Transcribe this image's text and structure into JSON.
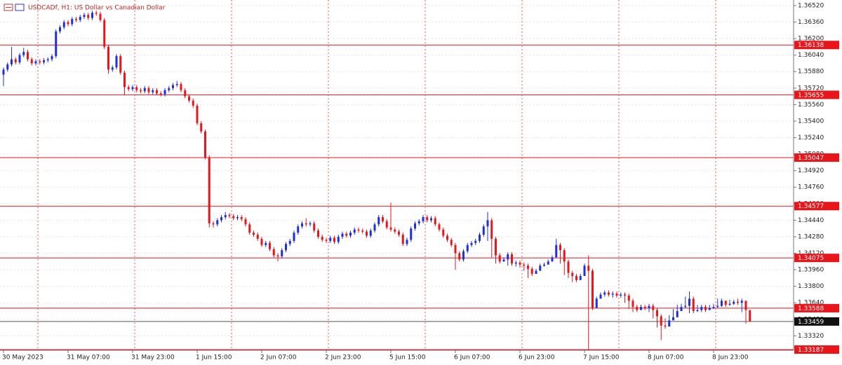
{
  "chart_data": {
    "type": "candlestick",
    "title": "USDCADf, H1:  US Dollar vs Canadian Dollar",
    "bull_color": "#1d2fe0",
    "bear_color": "#e8151b",
    "grid": true,
    "ylim": [
      1.3318,
      1.36574
    ],
    "yticks": [
      {
        "value": 1.3652,
        "label": "1.36520"
      },
      {
        "value": 1.3636,
        "label": "1.36360"
      },
      {
        "value": 1.362,
        "label": "1.36200"
      },
      {
        "value": 1.3604,
        "label": "1.36040"
      },
      {
        "value": 1.3588,
        "label": "1.35880"
      },
      {
        "value": 1.3572,
        "label": "1.35720"
      },
      {
        "value": 1.3556,
        "label": "1.35560"
      },
      {
        "value": 1.354,
        "label": "1.35400"
      },
      {
        "value": 1.3524,
        "label": "1.35240"
      },
      {
        "value": 1.3508,
        "label": "1.35080"
      },
      {
        "value": 1.3492,
        "label": "1.34920"
      },
      {
        "value": 1.3476,
        "label": "1.34760"
      },
      {
        "value": 1.346,
        "label": "1.34600"
      },
      {
        "value": 1.3444,
        "label": "1.34440"
      },
      {
        "value": 1.3428,
        "label": "1.34280"
      },
      {
        "value": 1.3412,
        "label": "1.34120"
      },
      {
        "value": 1.3396,
        "label": "1.33960"
      },
      {
        "value": 1.338,
        "label": "1.33800"
      },
      {
        "value": 1.3364,
        "label": "1.33640"
      },
      {
        "value": 1.3348,
        "label": "1.33480"
      },
      {
        "value": 1.3332,
        "label": "1.33320"
      }
    ],
    "xticks": [
      {
        "value": 0,
        "label": "30 May 2023"
      },
      {
        "value": 16,
        "label": "31 May 07:00"
      },
      {
        "value": 32,
        "label": "31 May 23:00"
      },
      {
        "value": 48,
        "label": "1 Jun 15:00"
      },
      {
        "value": 64,
        "label": "2 Jun 07:00"
      },
      {
        "value": 80,
        "label": "2 Jun 23:00"
      },
      {
        "value": 96,
        "label": "5 Jun 15:00"
      },
      {
        "value": 112,
        "label": "6 Jun 07:00"
      },
      {
        "value": 128,
        "label": "6 Jun 23:00"
      },
      {
        "value": 144,
        "label": "7 Jun 15:00"
      },
      {
        "value": 160,
        "label": "8 Jun 07:00"
      },
      {
        "value": 176,
        "label": "8 Jun 23:00"
      }
    ],
    "levels": [
      1.36138,
      1.35655,
      1.35047,
      1.34577,
      1.34075,
      1.33588
    ],
    "low_level": 1.33187,
    "current_price": 1.33459,
    "closes": [
      1.359,
      1.3595,
      1.36,
      1.3597,
      1.3604,
      1.3607,
      1.36,
      1.3596,
      1.3598,
      1.3597,
      1.3599,
      1.36,
      1.3603,
      1.3627,
      1.3631,
      1.3636,
      1.3634,
      1.3639,
      1.3638,
      1.3641,
      1.3643,
      1.364,
      1.3645,
      1.3644,
      1.3638,
      1.3612,
      1.359,
      1.3592,
      1.3603,
      1.3587,
      1.3573,
      1.3571,
      1.3573,
      1.357,
      1.3569,
      1.3572,
      1.3568,
      1.357,
      1.3567,
      1.3566,
      1.357,
      1.3572,
      1.3575,
      1.3576,
      1.357,
      1.3564,
      1.356,
      1.3555,
      1.3538,
      1.353,
      1.3505,
      1.3441,
      1.344,
      1.3444,
      1.3447,
      1.3449,
      1.3448,
      1.3446,
      1.3447,
      1.3445,
      1.344,
      1.3432,
      1.343,
      1.3426,
      1.342,
      1.3422,
      1.3416,
      1.341,
      1.3409,
      1.3415,
      1.3421,
      1.3424,
      1.3432,
      1.3438,
      1.3441,
      1.344,
      1.3441,
      1.3434,
      1.3428,
      1.3425,
      1.3424,
      1.3427,
      1.3423,
      1.3428,
      1.3431,
      1.3429,
      1.3432,
      1.3435,
      1.3434,
      1.3433,
      1.3429,
      1.3434,
      1.344,
      1.3447,
      1.3443,
      1.3437,
      1.3435,
      1.3433,
      1.343,
      1.3421,
      1.3425,
      1.3436,
      1.3441,
      1.3443,
      1.3447,
      1.3444,
      1.3446,
      1.344,
      1.3435,
      1.3429,
      1.3425,
      1.342,
      1.3412,
      1.3406,
      1.3414,
      1.342,
      1.3422,
      1.3424,
      1.343,
      1.3438,
      1.3444,
      1.3426,
      1.341,
      1.3404,
      1.3406,
      1.3411,
      1.3402,
      1.3403,
      1.3401,
      1.34,
      1.3397,
      1.3392,
      1.3395,
      1.34,
      1.3401,
      1.3404,
      1.3408,
      1.342,
      1.3415,
      1.3404,
      1.3393,
      1.339,
      1.3386,
      1.339,
      1.34,
      1.3395,
      1.3359,
      1.3368,
      1.3372,
      1.3374,
      1.3372,
      1.3373,
      1.3371,
      1.3372,
      1.3371,
      1.3366,
      1.336,
      1.3357,
      1.336,
      1.3359,
      1.3361,
      1.3357,
      1.3351,
      1.3342,
      1.3341,
      1.3347,
      1.335,
      1.3356,
      1.336,
      1.3361,
      1.3368,
      1.3356,
      1.3357,
      1.336,
      1.3357,
      1.3359,
      1.336,
      1.3361,
      1.3366,
      1.3362,
      1.3363,
      1.3365,
      1.3364,
      1.3366,
      1.3357,
      1.3346
    ],
    "opens": [
      1.3585,
      1.359,
      1.3595,
      1.36,
      1.3597,
      1.3604,
      1.3607,
      1.36,
      1.3596,
      1.3598,
      1.3597,
      1.3599,
      1.36,
      1.3603,
      1.3627,
      1.3631,
      1.3636,
      1.3634,
      1.3639,
      1.3638,
      1.3641,
      1.3643,
      1.364,
      1.3645,
      1.3644,
      1.3638,
      1.3612,
      1.359,
      1.3592,
      1.3603,
      1.3587,
      1.3573,
      1.3571,
      1.3573,
      1.357,
      1.3569,
      1.3572,
      1.3568,
      1.357,
      1.3567,
      1.3566,
      1.357,
      1.3572,
      1.3575,
      1.3576,
      1.357,
      1.3564,
      1.356,
      1.3555,
      1.3538,
      1.353,
      1.3505,
      1.3441,
      1.344,
      1.3444,
      1.3447,
      1.3449,
      1.3448,
      1.3446,
      1.3447,
      1.3445,
      1.344,
      1.3432,
      1.343,
      1.3426,
      1.342,
      1.3422,
      1.3416,
      1.341,
      1.3409,
      1.3415,
      1.3421,
      1.3424,
      1.3432,
      1.3438,
      1.3441,
      1.344,
      1.3441,
      1.3434,
      1.3428,
      1.3425,
      1.3424,
      1.3427,
      1.3423,
      1.3428,
      1.3431,
      1.3429,
      1.3432,
      1.3435,
      1.3434,
      1.3433,
      1.3429,
      1.3434,
      1.344,
      1.3447,
      1.3443,
      1.3437,
      1.3435,
      1.3433,
      1.343,
      1.3421,
      1.3425,
      1.3436,
      1.3441,
      1.3443,
      1.3447,
      1.3444,
      1.3446,
      1.344,
      1.3435,
      1.3429,
      1.3425,
      1.342,
      1.3412,
      1.3406,
      1.3414,
      1.342,
      1.3422,
      1.3424,
      1.343,
      1.3438,
      1.3444,
      1.3426,
      1.341,
      1.3404,
      1.3406,
      1.3411,
      1.3402,
      1.3403,
      1.3401,
      1.34,
      1.3397,
      1.3392,
      1.3395,
      1.34,
      1.3401,
      1.3404,
      1.3408,
      1.342,
      1.3415,
      1.3404,
      1.3393,
      1.339,
      1.3386,
      1.339,
      1.34,
      1.3395,
      1.3359,
      1.3368,
      1.3372,
      1.3374,
      1.3372,
      1.3373,
      1.3371,
      1.3372,
      1.3371,
      1.3366,
      1.336,
      1.3357,
      1.336,
      1.3359,
      1.3361,
      1.3357,
      1.3351,
      1.3342,
      1.3341,
      1.3347,
      1.335,
      1.3356,
      1.336,
      1.3361,
      1.3368,
      1.3356,
      1.3357,
      1.336,
      1.3357,
      1.3359,
      1.336,
      1.3361,
      1.3366,
      1.3362,
      1.3363,
      1.3365,
      1.3364,
      1.3366,
      1.3357
    ],
    "highs": [
      1.3592,
      1.3597,
      1.3612,
      1.3602,
      1.3606,
      1.3611,
      1.3609,
      1.3602,
      1.36,
      1.36,
      1.3601,
      1.3602,
      1.3605,
      1.3629,
      1.3633,
      1.3638,
      1.3638,
      1.3641,
      1.3641,
      1.3643,
      1.3645,
      1.3645,
      1.3647,
      1.3647,
      1.3646,
      1.364,
      1.3614,
      1.3594,
      1.3605,
      1.3605,
      1.3589,
      1.3575,
      1.3575,
      1.3575,
      1.3572,
      1.3574,
      1.3574,
      1.3572,
      1.3572,
      1.3569,
      1.3572,
      1.3574,
      1.3577,
      1.3579,
      1.3578,
      1.3572,
      1.3566,
      1.3562,
      1.3557,
      1.354,
      1.3532,
      1.3507,
      1.3443,
      1.3446,
      1.3449,
      1.3452,
      1.3451,
      1.345,
      1.3449,
      1.3449,
      1.3447,
      1.3442,
      1.3434,
      1.3432,
      1.3428,
      1.3424,
      1.3424,
      1.3418,
      1.3412,
      1.3417,
      1.3423,
      1.3426,
      1.3434,
      1.344,
      1.3443,
      1.3446,
      1.3443,
      1.3443,
      1.3436,
      1.343,
      1.3427,
      1.3429,
      1.3429,
      1.343,
      1.3433,
      1.3433,
      1.3434,
      1.3437,
      1.3437,
      1.3436,
      1.3435,
      1.3436,
      1.3442,
      1.3449,
      1.3449,
      1.3445,
      1.3461,
      1.3437,
      1.3435,
      1.3432,
      1.3427,
      1.3438,
      1.3443,
      1.3445,
      1.3449,
      1.3449,
      1.3448,
      1.3448,
      1.3442,
      1.3437,
      1.3431,
      1.3427,
      1.3422,
      1.3414,
      1.3416,
      1.3422,
      1.3424,
      1.3426,
      1.3432,
      1.344,
      1.3452,
      1.3446,
      1.3428,
      1.3412,
      1.3408,
      1.3413,
      1.3413,
      1.3405,
      1.3405,
      1.3403,
      1.3402,
      1.3399,
      1.3397,
      1.3402,
      1.3403,
      1.3406,
      1.341,
      1.3426,
      1.3422,
      1.3417,
      1.3406,
      1.3395,
      1.3392,
      1.3392,
      1.3402,
      1.341,
      1.3397,
      1.337,
      1.3374,
      1.3376,
      1.3376,
      1.3375,
      1.3375,
      1.3374,
      1.3374,
      1.3373,
      1.3368,
      1.3362,
      1.3362,
      1.3362,
      1.3363,
      1.3363,
      1.3359,
      1.3353,
      1.3349,
      1.3352,
      1.3358,
      1.3362,
      1.3363,
      1.337,
      1.3375,
      1.337,
      1.3362,
      1.3362,
      1.3362,
      1.3362,
      1.3363,
      1.3368,
      1.3368,
      1.3365,
      1.3367,
      1.3367,
      1.3368,
      1.3368,
      1.3359
    ],
    "lows": [
      1.3574,
      1.3588,
      1.3593,
      1.3595,
      1.3595,
      1.3602,
      1.3598,
      1.3594,
      1.3594,
      1.3595,
      1.3595,
      1.3597,
      1.3598,
      1.3601,
      1.3625,
      1.3629,
      1.3632,
      1.3632,
      1.3636,
      1.3636,
      1.3639,
      1.3638,
      1.3638,
      1.3642,
      1.3636,
      1.361,
      1.3586,
      1.3588,
      1.359,
      1.3585,
      1.3565,
      1.3569,
      1.3569,
      1.3568,
      1.3567,
      1.3567,
      1.3566,
      1.3566,
      1.3565,
      1.3564,
      1.3564,
      1.3568,
      1.357,
      1.3573,
      1.3568,
      1.3562,
      1.3558,
      1.3553,
      1.3536,
      1.3528,
      1.3503,
      1.3437,
      1.3437,
      1.3438,
      1.3442,
      1.3445,
      1.3446,
      1.3444,
      1.3444,
      1.3443,
      1.3438,
      1.343,
      1.3428,
      1.3424,
      1.3418,
      1.3418,
      1.3414,
      1.3408,
      1.3404,
      1.3407,
      1.3413,
      1.3419,
      1.3422,
      1.343,
      1.3436,
      1.3438,
      1.3438,
      1.3432,
      1.3426,
      1.3423,
      1.3422,
      1.3422,
      1.3421,
      1.3421,
      1.3426,
      1.3427,
      1.3427,
      1.343,
      1.3432,
      1.3431,
      1.3427,
      1.3427,
      1.3432,
      1.3438,
      1.3441,
      1.3435,
      1.3433,
      1.3431,
      1.3428,
      1.3419,
      1.3419,
      1.3423,
      1.3434,
      1.3439,
      1.3441,
      1.3442,
      1.3442,
      1.3438,
      1.3433,
      1.3427,
      1.3423,
      1.3418,
      1.3396,
      1.3404,
      1.3404,
      1.3412,
      1.3418,
      1.342,
      1.3422,
      1.3428,
      1.3424,
      1.3408,
      1.3402,
      1.3402,
      1.3404,
      1.34,
      1.34,
      1.3399,
      1.3398,
      1.3395,
      1.3388,
      1.339,
      1.3393,
      1.3398,
      1.3399,
      1.3402,
      1.3406,
      1.3413,
      1.3402,
      1.3391,
      1.3388,
      1.3384,
      1.3384,
      1.3388,
      1.3393,
      1.3318,
      1.3357,
      1.3366,
      1.337,
      1.337,
      1.337,
      1.3369,
      1.3369,
      1.3369,
      1.3364,
      1.3358,
      1.3355,
      1.3355,
      1.3357,
      1.3357,
      1.3355,
      1.3349,
      1.334,
      1.3328,
      1.3339,
      1.3345,
      1.3348,
      1.3354,
      1.3358,
      1.3359,
      1.3354,
      1.3354,
      1.3355,
      1.3355,
      1.3355,
      1.3357,
      1.3358,
      1.3359,
      1.336,
      1.336,
      1.3361,
      1.3362,
      1.3362,
      1.3355,
      1.3344
    ]
  }
}
